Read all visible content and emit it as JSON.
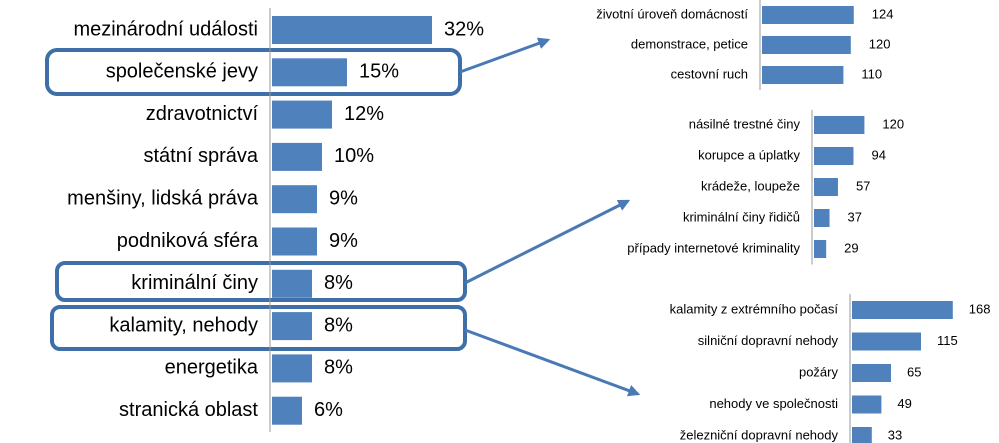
{
  "chart_data": [
    {
      "type": "bar",
      "color": "#4f81bd",
      "categories": [
        "mezinárodní události",
        "společenské jevy",
        "zdravotnictví",
        "státní správa",
        "menšiny, lidská práva",
        "podniková sféra",
        "kriminální činy",
        "kalamity, nehody",
        "energetika",
        "stranická oblast"
      ],
      "values": [
        32,
        15,
        12,
        10,
        9,
        9,
        8,
        8,
        8,
        6
      ],
      "value_labels": [
        "32%",
        "15%",
        "12%",
        "10%",
        "9%",
        "9%",
        "8%",
        "8%",
        "8%",
        "6%"
      ]
    },
    {
      "type": "bar",
      "color": "#4f81bd",
      "categories": [
        "životní úroveň domácností",
        "demonstrace, petice",
        "cestovní ruch"
      ],
      "values": [
        124,
        120,
        110
      ]
    },
    {
      "type": "bar",
      "color": "#4f81bd",
      "categories": [
        "násilné trestné činy",
        "korupce a úplatky",
        "krádeže, loupeže",
        "kriminální činy řidičů",
        "případy internetové kriminality"
      ],
      "values": [
        120,
        94,
        57,
        37,
        29
      ]
    },
    {
      "type": "bar",
      "color": "#4f81bd",
      "categories": [
        "kalamity z extrémního počasí",
        "silniční dopravní nehody",
        "požáry",
        "nehody ve společnosti",
        "železniční dopravní nehody"
      ],
      "values": [
        168,
        115,
        65,
        49,
        33
      ]
    }
  ]
}
